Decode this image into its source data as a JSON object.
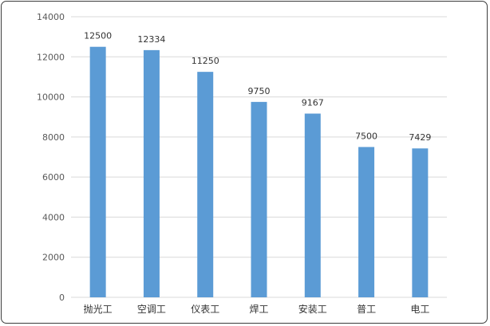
{
  "chart_data": {
    "type": "bar",
    "categories": [
      "抛光工",
      "空调工",
      "仪表工",
      "焊工",
      "安装工",
      "普工",
      "电工"
    ],
    "values": [
      12500,
      12334,
      11250,
      9750,
      9167,
      7500,
      7429
    ],
    "data_labels": [
      "12500",
      "12334",
      "11250",
      "9750",
      "9167",
      "7500",
      "7429"
    ],
    "title": "",
    "xlabel": "",
    "ylabel": "",
    "ylim": [
      0,
      14000
    ],
    "yticks": [
      "0",
      "2000",
      "4000",
      "6000",
      "8000",
      "10000",
      "12000",
      "14000"
    ],
    "grid": true,
    "legend": "none",
    "bar_color": "#5b9bd5"
  }
}
